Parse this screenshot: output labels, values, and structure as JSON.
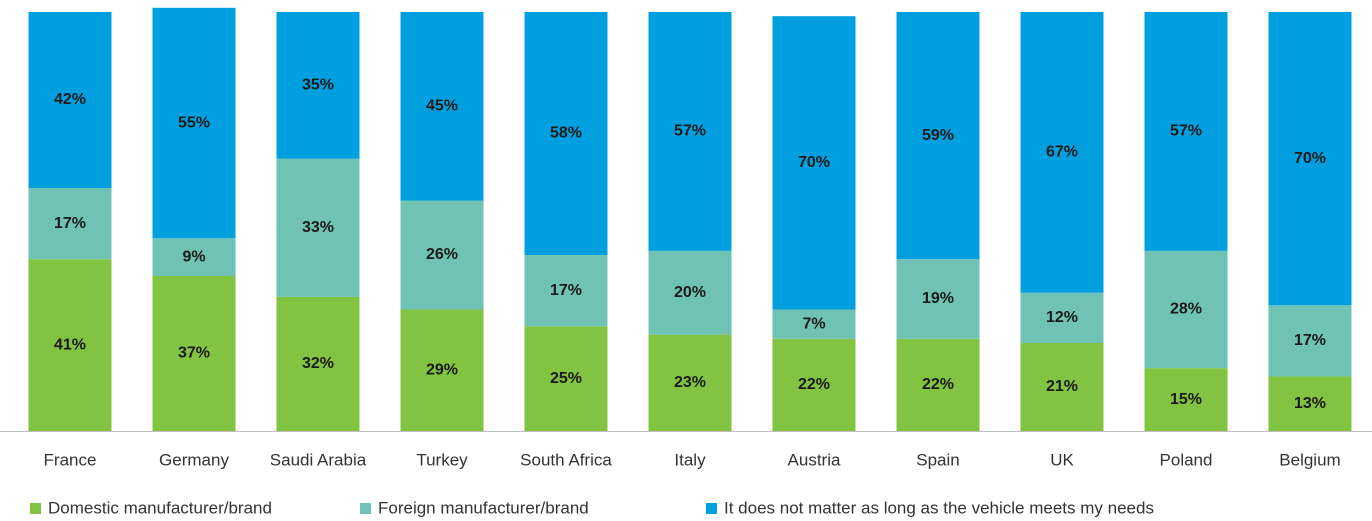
{
  "chart_data": {
    "type": "stacked_bar",
    "categories": [
      "France",
      "Germany",
      "Saudi Arabia",
      "Turkey",
      "South Africa",
      "Italy",
      "Austria",
      "Spain",
      "UK",
      "Poland",
      "Belgium"
    ],
    "ylim": [
      0,
      100
    ],
    "series": [
      {
        "name": "Domestic manufacturer/brand",
        "color": "#82c341",
        "values": [
          41,
          37,
          32,
          29,
          25,
          23,
          22,
          22,
          21,
          15,
          13
        ],
        "value_labels": [
          "41%",
          "37%",
          "32%",
          "29%",
          "25%",
          "23%",
          "22%",
          "22%",
          "21%",
          "15%",
          "13%"
        ]
      },
      {
        "name": "Foreign manufacturer/brand",
        "color": "#70c3b4",
        "values": [
          17,
          9,
          33,
          26,
          17,
          20,
          7,
          19,
          12,
          28,
          17
        ],
        "value_labels": [
          "17%",
          "9%",
          "33%",
          "26%",
          "17%",
          "20%",
          "7%",
          "19%",
          "12%",
          "28%",
          "17%"
        ]
      },
      {
        "name": "It does not matter as long as the vehicle meets my needs",
        "color": "#00a0e0",
        "values": [
          42,
          55,
          35,
          45,
          58,
          57,
          70,
          59,
          67,
          57,
          70
        ],
        "value_labels": [
          "42%",
          "55%",
          "35%",
          "45%",
          "58%",
          "57%",
          "70%",
          "59%",
          "67%",
          "57%",
          "70%"
        ]
      }
    ],
    "legend": "bottom"
  }
}
